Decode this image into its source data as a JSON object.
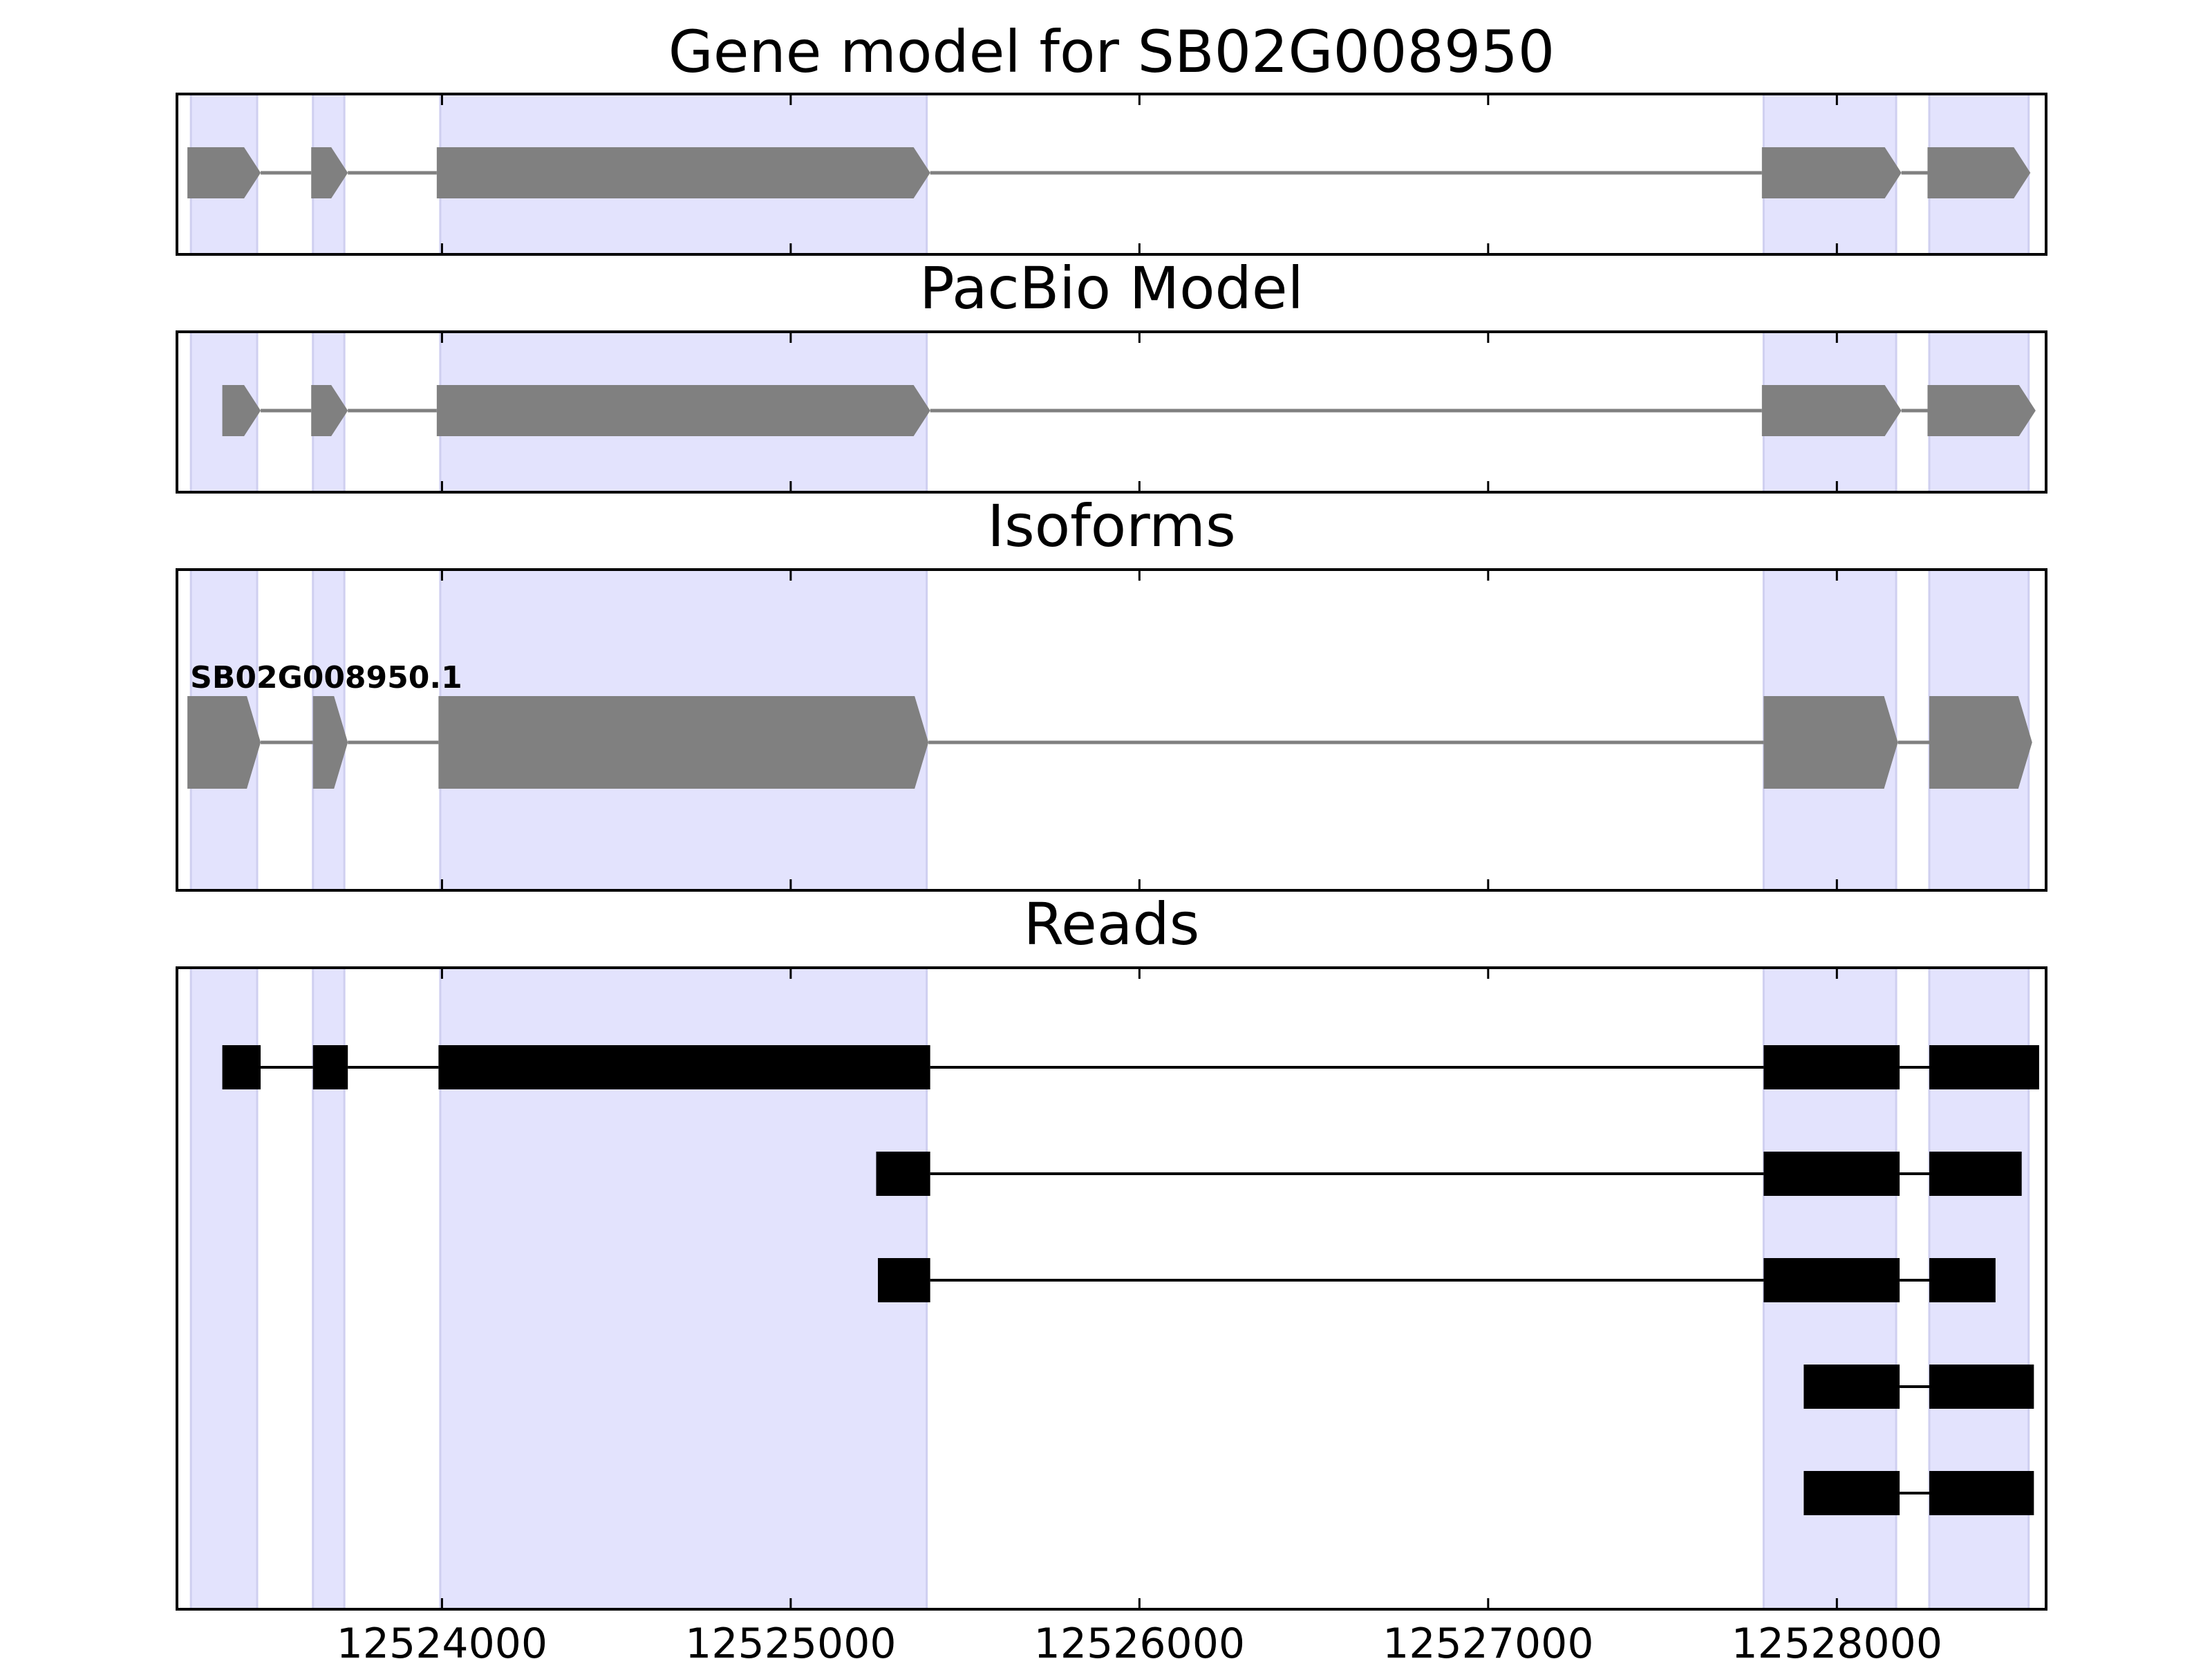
{
  "figure": {
    "background": "#ffffff",
    "shade_color": "#e3e3fd",
    "shade_edge_color": "#cfcff0",
    "gene_color": "#808080",
    "read_color": "#000000"
  },
  "x_axis": {
    "min": 12523240,
    "max": 12528600,
    "ticks": [
      12524000,
      12525000,
      12526000,
      12527000,
      12528000
    ],
    "tick_labels": [
      "12524000",
      "12525000",
      "12526000",
      "12527000",
      "12528000"
    ]
  },
  "shaded_regions": [
    [
      12523280,
      12523470
    ],
    [
      12523630,
      12523720
    ],
    [
      12523995,
      12525390
    ],
    [
      12527790,
      12528170
    ],
    [
      12528265,
      12528550
    ]
  ],
  "panels": [
    {
      "id": "gene-model",
      "title": "Gene model for SB02G008950",
      "type": "gene",
      "tracks": [
        {
          "label": "",
          "exons": [
            [
              12523270,
              12523480
            ],
            [
              12523625,
              12523730
            ],
            [
              12523985,
              12525400
            ],
            [
              12527785,
              12528185
            ],
            [
              12528260,
              12528555
            ]
          ]
        }
      ]
    },
    {
      "id": "pacbio-model",
      "title": "PacBio Model",
      "type": "gene",
      "tracks": [
        {
          "label": "",
          "exons": [
            [
              12523370,
              12523480
            ],
            [
              12523625,
              12523730
            ],
            [
              12523985,
              12525400
            ],
            [
              12527785,
              12528185
            ],
            [
              12528260,
              12528570
            ]
          ]
        }
      ]
    },
    {
      "id": "isoforms",
      "title": "Isoforms",
      "type": "gene",
      "tracks": [
        {
          "label": "SB02G008950.1",
          "exons": [
            [
              12523270,
              12523480
            ],
            [
              12523630,
              12523730
            ],
            [
              12523990,
              12525395
            ],
            [
              12527790,
              12528175
            ],
            [
              12528265,
              12528560
            ]
          ]
        }
      ]
    },
    {
      "id": "reads",
      "title": "Reads",
      "type": "reads",
      "tracks": [
        {
          "exons": [
            [
              12523370,
              12523480
            ],
            [
              12523630,
              12523730
            ],
            [
              12523990,
              12525400
            ],
            [
              12527790,
              12528180
            ],
            [
              12528265,
              12528580
            ]
          ]
        },
        {
          "exons": [
            [
              12525245,
              12525400
            ],
            [
              12527790,
              12528180
            ],
            [
              12528265,
              12528530
            ]
          ]
        },
        {
          "exons": [
            [
              12525250,
              12525400
            ],
            [
              12527790,
              12528180
            ],
            [
              12528265,
              12528455
            ]
          ]
        },
        {
          "exons": [
            [
              12527905,
              12528180
            ],
            [
              12528265,
              12528565
            ]
          ]
        },
        {
          "exons": [
            [
              12527905,
              12528180
            ],
            [
              12528265,
              12528565
            ]
          ]
        }
      ]
    }
  ]
}
